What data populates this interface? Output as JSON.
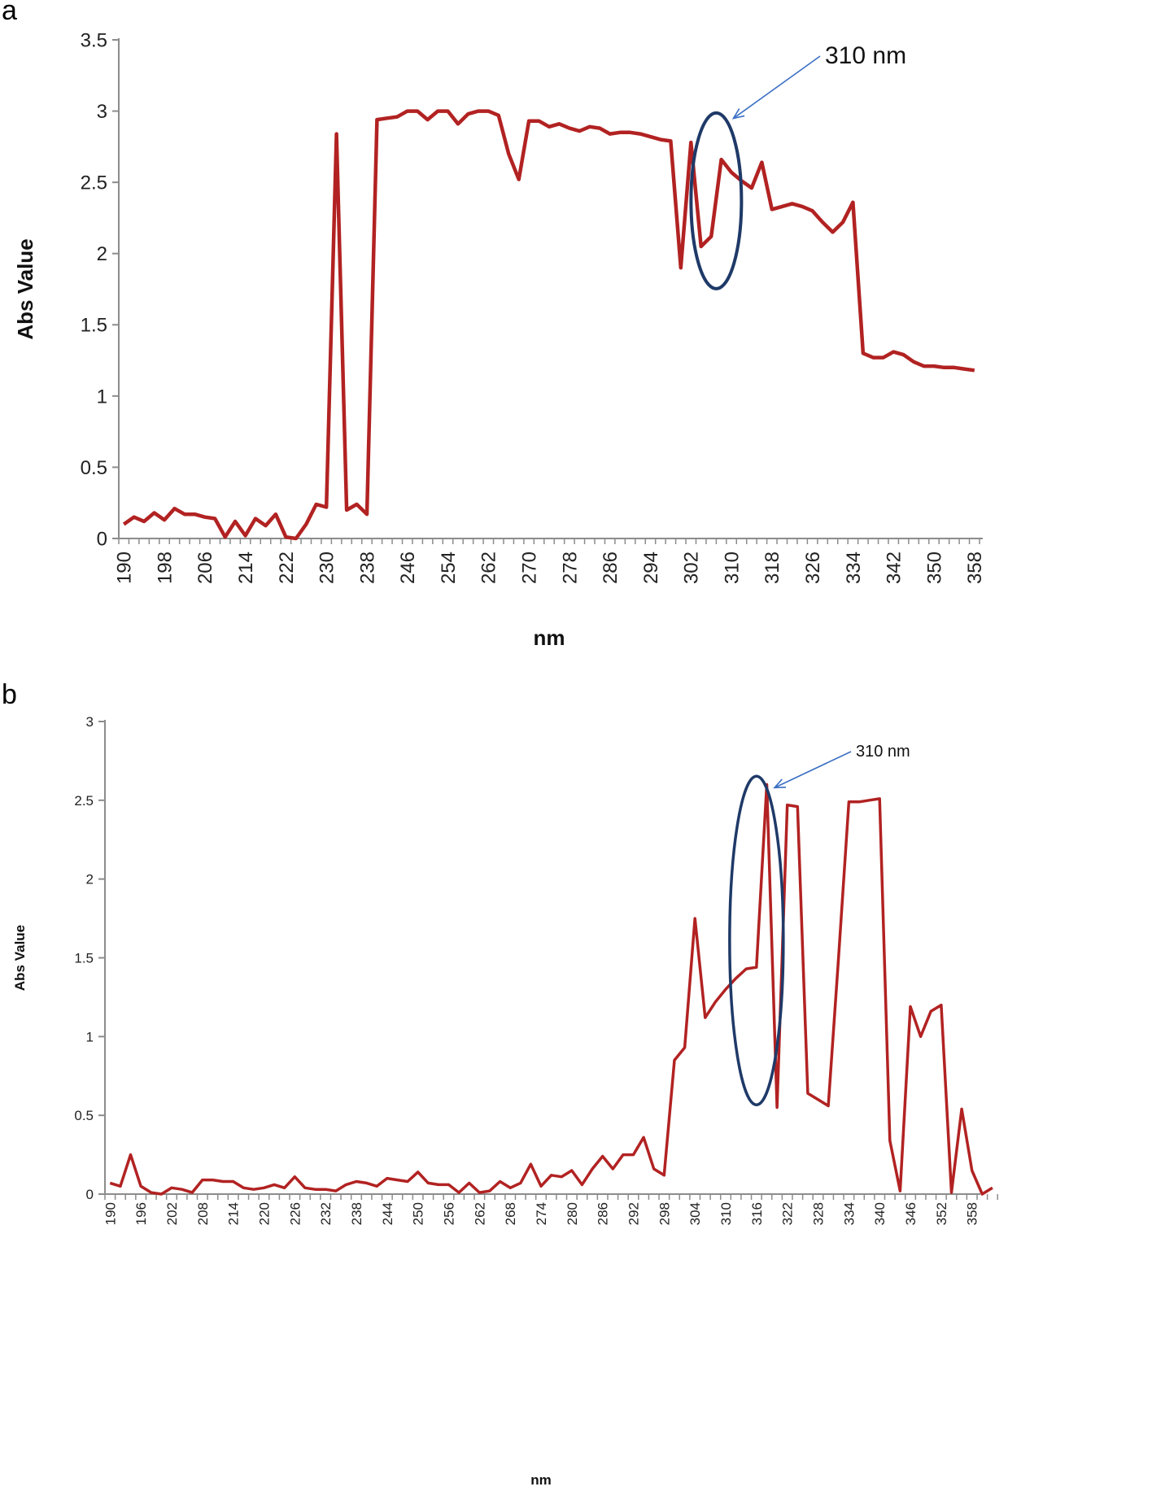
{
  "chart_data": [
    {
      "panel": "a",
      "type": "line",
      "xlabel": "nm",
      "ylabel": "Abs Value",
      "ylim": [
        0,
        3.5
      ],
      "yticks": [
        "0",
        "0.5",
        "1",
        "1.5",
        "2",
        "2.5",
        "3",
        "3.5"
      ],
      "xticks": [
        "190",
        "198",
        "206",
        "214",
        "222",
        "230",
        "238",
        "246",
        "254",
        "262",
        "270",
        "278",
        "286",
        "294",
        "302",
        "310",
        "318",
        "326",
        "334",
        "342",
        "350",
        "358"
      ],
      "x_start": 190,
      "x_step": 2,
      "series": [
        {
          "name": "Abs",
          "color": "#b22222",
          "values": [
            0.1,
            0.15,
            0.12,
            0.18,
            0.13,
            0.21,
            0.17,
            0.17,
            0.15,
            0.14,
            0.01,
            0.12,
            0.02,
            0.14,
            0.09,
            0.17,
            0.01,
            0.0,
            0.1,
            0.24,
            0.22,
            2.84,
            0.2,
            0.24,
            0.17,
            2.94,
            2.95,
            2.96,
            3.0,
            3.0,
            2.94,
            3.0,
            3.0,
            2.91,
            2.98,
            3.0,
            3.0,
            2.97,
            2.7,
            2.52,
            2.93,
            2.93,
            2.89,
            2.91,
            2.88,
            2.86,
            2.89,
            2.88,
            2.84,
            2.85,
            2.85,
            2.84,
            2.82,
            2.8,
            2.79,
            1.9,
            2.78,
            2.05,
            2.12,
            2.66,
            2.57,
            2.51,
            2.46,
            2.64,
            2.31,
            2.33,
            2.35,
            2.33,
            2.3,
            2.22,
            2.15,
            2.22,
            2.36,
            1.3,
            1.27,
            1.27,
            1.31,
            1.29,
            1.24,
            1.21,
            1.21,
            1.2,
            1.2,
            1.19,
            1.18
          ]
        }
      ],
      "annotation": {
        "text": "310 nm",
        "x": 307,
        "y": 2.37
      }
    },
    {
      "panel": "b",
      "type": "line",
      "xlabel": "nm",
      "ylabel": "Abs Value",
      "ylim": [
        0,
        3
      ],
      "yticks": [
        "0",
        "0.5",
        "1",
        "1.5",
        "2",
        "2.5",
        "3"
      ],
      "xticks": [
        "190",
        "196",
        "202",
        "208",
        "214",
        "220",
        "226",
        "232",
        "238",
        "244",
        "250",
        "256",
        "262",
        "268",
        "274",
        "280",
        "286",
        "292",
        "298",
        "304",
        "310",
        "316",
        "322",
        "328",
        "334",
        "340",
        "346",
        "352",
        "358"
      ],
      "x_start": 190,
      "x_step": 2,
      "series": [
        {
          "name": "Abs",
          "color": "#b22222",
          "values": [
            0.07,
            0.05,
            0.25,
            0.05,
            0.01,
            0.0,
            0.04,
            0.03,
            0.01,
            0.09,
            0.09,
            0.08,
            0.08,
            0.04,
            0.03,
            0.04,
            0.06,
            0.04,
            0.11,
            0.04,
            0.03,
            0.03,
            0.02,
            0.06,
            0.08,
            0.07,
            0.05,
            0.1,
            0.09,
            0.08,
            0.14,
            0.07,
            0.06,
            0.06,
            0.01,
            0.07,
            0.01,
            0.02,
            0.08,
            0.04,
            0.07,
            0.19,
            0.05,
            0.12,
            0.11,
            0.15,
            0.06,
            0.16,
            0.24,
            0.16,
            0.25,
            0.25,
            0.36,
            0.16,
            0.12,
            0.85,
            0.93,
            1.75,
            1.12,
            1.22,
            1.3,
            1.37,
            1.43,
            1.44,
            2.6,
            0.55,
            2.47,
            2.46,
            0.64,
            0.6,
            0.56,
            1.5,
            2.49,
            2.49,
            2.5,
            2.51,
            0.34,
            0.02,
            1.19,
            1.0,
            1.16,
            1.2,
            0.01,
            0.54,
            0.15,
            0.0,
            0.04
          ]
        }
      ],
      "annotation": {
        "text": "310 nm",
        "x": 316,
        "y": 1.61
      }
    }
  ],
  "panels": [
    {
      "label": "a"
    },
    {
      "label": "b"
    }
  ]
}
